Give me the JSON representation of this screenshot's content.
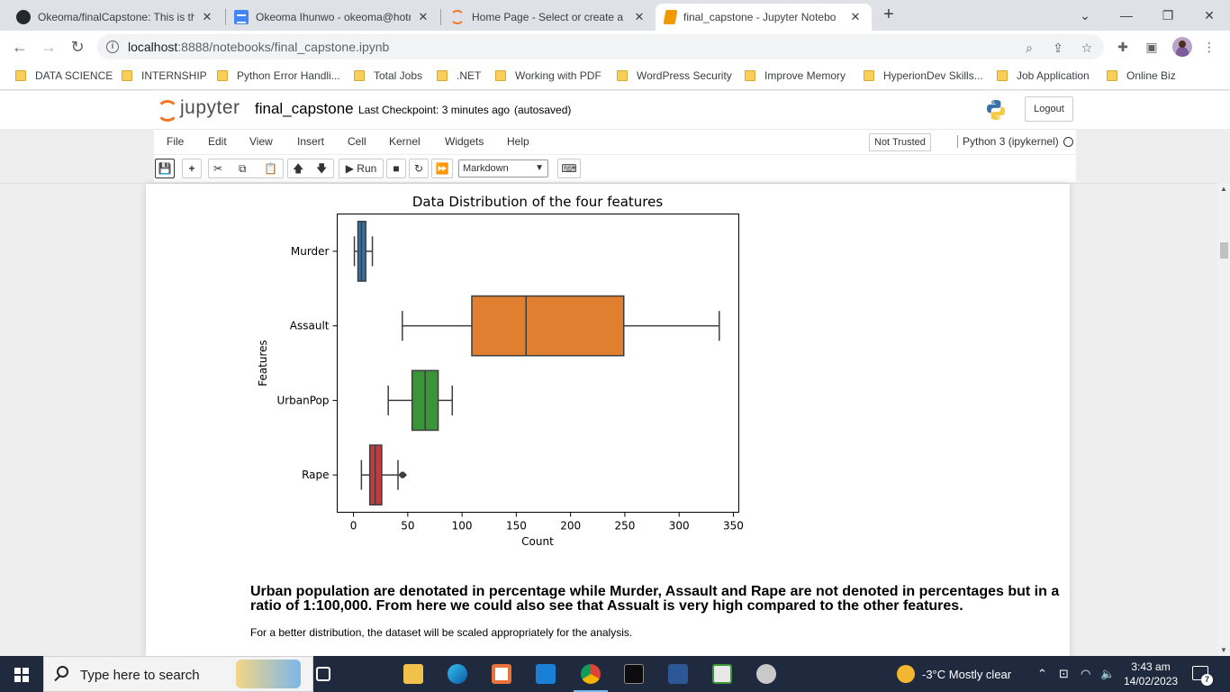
{
  "browser": {
    "tabs": [
      {
        "title": "Okeoma/finalCapstone: This is th",
        "icon": "github-icon",
        "active": false
      },
      {
        "title": "Okeoma Ihunwo - okeoma@hotr",
        "icon": "document-icon",
        "active": false
      },
      {
        "title": "Home Page - Select or create a n",
        "icon": "jupyter-icon",
        "active": false
      },
      {
        "title": "final_capstone - Jupyter Notebo",
        "icon": "notebook-icon",
        "active": true
      }
    ],
    "close_glyph": "✕",
    "new_tab_glyph": "+",
    "url_host": "localhost",
    "url_rest": ":8888/notebooks/final_capstone.ipynb",
    "bookmarks": [
      "DATA SCIENCE",
      "INTERNSHIP",
      "Python Error Handli...",
      "Total Jobs",
      ".NET",
      "Working with PDF",
      "WordPress Security",
      "Improve Memory",
      "HyperionDev Skills...",
      "Job Application",
      "Online Biz"
    ]
  },
  "jupyter": {
    "logo_text": "jupyter",
    "notebook_name": "final_capstone",
    "checkpoint": "Last Checkpoint: 3 minutes ago",
    "autosave": "(autosaved)",
    "logout_label": "Logout",
    "menu": [
      "File",
      "Edit",
      "View",
      "Insert",
      "Cell",
      "Kernel",
      "Widgets",
      "Help"
    ],
    "trust_label": "Not Trusted",
    "kernel_label": "Python 3 (ipykernel)",
    "run_label": "Run",
    "cell_type": "Markdown"
  },
  "chart_data": {
    "type": "box",
    "orientation": "horizontal",
    "title": "Data Distribution of the four features",
    "xlabel": "Count",
    "ylabel": "Features",
    "xlim": [
      -15,
      355
    ],
    "xticks": [
      0,
      50,
      100,
      150,
      200,
      250,
      300,
      350
    ],
    "categories": [
      "Murder",
      "Assault",
      "UrbanPop",
      "Rape"
    ],
    "boxes": [
      {
        "name": "Murder",
        "color": "#3a6f9e",
        "whisker_low": 0.8,
        "q1": 4.1,
        "median": 7.3,
        "q3": 11.3,
        "whisker_high": 17.4,
        "outliers": []
      },
      {
        "name": "Assault",
        "color": "#e07f2f",
        "whisker_low": 45,
        "q1": 109,
        "median": 159,
        "q3": 249,
        "whisker_high": 337,
        "outliers": []
      },
      {
        "name": "UrbanPop",
        "color": "#3a9438",
        "whisker_low": 32,
        "q1": 54,
        "median": 66,
        "q3": 78,
        "whisker_high": 91,
        "outliers": []
      },
      {
        "name": "Rape",
        "color": "#c03d3e",
        "whisker_low": 7.3,
        "q1": 15,
        "median": 20,
        "q3": 26,
        "whisker_high": 41,
        "outliers": [
          44.5,
          46
        ]
      }
    ]
  },
  "markdown": {
    "bold_text": "Urban population are denotated in percentage while Murder, Assault and Rape are not denoted in percentages but in a ratio of 1:100,000. From here we could also see that Assualt is very high compared to the other features.",
    "small_text": "For a better distribution, the dataset will be scaled appropriately for the analysis."
  },
  "taskbar": {
    "search_placeholder": "Type here to search",
    "weather": "-3°C  Mostly clear",
    "time": "3:43 am",
    "date": "14/02/2023",
    "notification_count": "7"
  }
}
